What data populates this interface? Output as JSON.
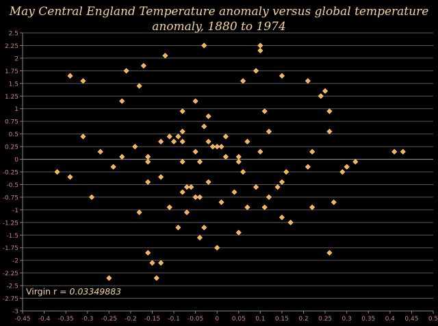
{
  "chart_data": {
    "type": "scatter",
    "title_lines": [
      "May Central England Temperature anomaly versus global temperature",
      "anomaly, 1880 to 1974"
    ],
    "annotation_prefix": "Virgin r = ",
    "annotation_value": "0.03349883",
    "xlim": [
      -0.45,
      0.5
    ],
    "ylim": [
      -3,
      2.5
    ],
    "x_ticks": [
      "-0.45",
      "-0.4",
      "-0.35",
      "-0.3",
      "-0.25",
      "-0.2",
      "-0.15",
      "-0.1",
      "-0.05",
      "0",
      "0.05",
      "0.1",
      "0.15",
      "0.2",
      "0.25",
      "0.3",
      "0.35",
      "0.4",
      "0.45",
      "0.5"
    ],
    "y_ticks": [
      "2.5",
      "2.25",
      "2",
      "1.75",
      "1.5",
      "1.25",
      "1",
      "0.75",
      "0.5",
      "0.25",
      "0",
      "-0.25",
      "-0.5",
      "-0.75",
      "-1",
      "-1.25",
      "-1.5",
      "-1.75",
      "-2",
      "-2.25",
      "-2.5",
      "-2.75",
      "-3"
    ],
    "grid": true,
    "colors": {
      "background": "#000000",
      "plot_background": "#000000",
      "gridline": "#5a5a5a",
      "axis": "#888888",
      "tick_label": "#d08080",
      "marker": "#ffae4a",
      "marker_edge": "#ffe6b0",
      "title": "#f5d5a0",
      "annotation": "#f5d5a0"
    },
    "points": [
      [
        -0.37,
        -0.25
      ],
      [
        -0.34,
        1.65
      ],
      [
        -0.34,
        -0.35
      ],
      [
        -0.31,
        1.55
      ],
      [
        -0.31,
        0.45
      ],
      [
        -0.29,
        -0.75
      ],
      [
        -0.27,
        0.15
      ],
      [
        -0.25,
        -2.35
      ],
      [
        -0.24,
        -0.15
      ],
      [
        -0.22,
        1.15
      ],
      [
        -0.22,
        0.05
      ],
      [
        -0.21,
        1.75
      ],
      [
        -0.19,
        0.25
      ],
      [
        -0.18,
        1.45
      ],
      [
        -0.18,
        -1.05
      ],
      [
        -0.17,
        1.85
      ],
      [
        -0.16,
        0.05
      ],
      [
        -0.16,
        -0.05
      ],
      [
        -0.16,
        -0.45
      ],
      [
        -0.16,
        -1.85
      ],
      [
        -0.15,
        -2.05
      ],
      [
        -0.14,
        -2.35
      ],
      [
        -0.13,
        0.35
      ],
      [
        -0.13,
        -0.35
      ],
      [
        -0.13,
        -2.05
      ],
      [
        -0.12,
        2.05
      ],
      [
        -0.11,
        0.45
      ],
      [
        -0.11,
        -0.95
      ],
      [
        -0.1,
        0.35
      ],
      [
        -0.09,
        0.45
      ],
      [
        -0.09,
        -1.35
      ],
      [
        -0.08,
        0.95
      ],
      [
        -0.08,
        0.55
      ],
      [
        -0.08,
        0.35
      ],
      [
        -0.08,
        -0.05
      ],
      [
        -0.08,
        -0.65
      ],
      [
        -0.07,
        -0.55
      ],
      [
        -0.07,
        -1.05
      ],
      [
        -0.06,
        -0.55
      ],
      [
        -0.05,
        1.15
      ],
      [
        -0.05,
        0.15
      ],
      [
        -0.05,
        -0.75
      ],
      [
        -0.04,
        -0.05
      ],
      [
        -0.04,
        -0.75
      ],
      [
        -0.04,
        -1.55
      ],
      [
        -0.03,
        2.25
      ],
      [
        -0.03,
        0.65
      ],
      [
        -0.03,
        -1.35
      ],
      [
        -0.02,
        0.85
      ],
      [
        -0.02,
        0.35
      ],
      [
        -0.02,
        -0.45
      ],
      [
        -0.01,
        0.25
      ],
      [
        0,
        0.25
      ],
      [
        0,
        -1.75
      ],
      [
        0.01,
        0.25
      ],
      [
        0.01,
        -0.85
      ],
      [
        0.02,
        0.45
      ],
      [
        0.02,
        0.05
      ],
      [
        0.04,
        -0.65
      ],
      [
        0.05,
        0.05
      ],
      [
        0.05,
        -0.05
      ],
      [
        0.05,
        -1.45
      ],
      [
        0.06,
        1.55
      ],
      [
        0.06,
        -0.25
      ],
      [
        0.07,
        0.35
      ],
      [
        0.07,
        -0.95
      ],
      [
        0.09,
        1.75
      ],
      [
        0.09,
        -0.55
      ],
      [
        0.1,
        2.25
      ],
      [
        0.1,
        2.15
      ],
      [
        0.1,
        0.15
      ],
      [
        0.11,
        0.95
      ],
      [
        0.11,
        -0.95
      ],
      [
        0.12,
        0.55
      ],
      [
        0.12,
        -0.75
      ],
      [
        0.14,
        -0.55
      ],
      [
        0.15,
        1.65
      ],
      [
        0.15,
        -0.45
      ],
      [
        0.15,
        -1.15
      ],
      [
        0.16,
        -0.25
      ],
      [
        0.17,
        -1.25
      ],
      [
        0.21,
        1.55
      ],
      [
        0.21,
        -0.15
      ],
      [
        0.22,
        0.15
      ],
      [
        0.22,
        -0.95
      ],
      [
        0.24,
        1.25
      ],
      [
        0.25,
        1.35
      ],
      [
        0.26,
        0.95
      ],
      [
        0.26,
        0.55
      ],
      [
        0.26,
        -1.85
      ],
      [
        0.27,
        -0.85
      ],
      [
        0.29,
        -0.25
      ],
      [
        0.3,
        -0.15
      ],
      [
        0.32,
        -0.05
      ],
      [
        0.41,
        0.15
      ],
      [
        0.43,
        0.15
      ]
    ]
  }
}
